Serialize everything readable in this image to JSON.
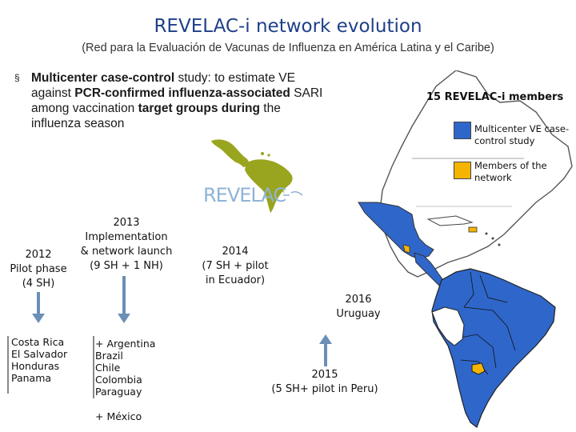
{
  "title": "REVELAC-i network evolution",
  "subtitle": "(Red para la Evaluación de Vacunas de Influenza en América Latina y el Caribe)",
  "bullet": {
    "marker": "§",
    "p1_bold": "Multicenter case-control",
    "p2": " study: to estimate VE against ",
    "p3_bold": "PCR-confirmed influenza-associated",
    "p4": " SARI among vaccination ",
    "p5_bold": "target groups during",
    "p6": " the influenza season"
  },
  "logo": {
    "text": "REVELAC",
    "colors": {
      "green": "#9aa51f",
      "blue": "#8fb4d6"
    }
  },
  "legend": {
    "title": "15 REVELAC-i members",
    "items": [
      {
        "label_line1": "Multicenter VE case-",
        "label_line2": "control study",
        "color": "#2f66c9"
      },
      {
        "label_line1": "Members of the",
        "label_line2": "network",
        "color": "#f4b400"
      }
    ]
  },
  "timeline": [
    {
      "line1": "2012",
      "line2": "Pilot phase",
      "line3": "(4 SH)"
    },
    {
      "line1": "2013",
      "line2": "Implementation",
      "line3": "& network launch",
      "line4": "(9 SH + 1 NH)"
    },
    {
      "line1": "2014",
      "line2": "(7 SH + pilot",
      "line3": "in Ecuador)"
    },
    {
      "line1": "2015",
      "line2": "(5 SH+ pilot in Peru)"
    },
    {
      "line1": "2016",
      "line2": "Uruguay"
    }
  ],
  "countries_2012": [
    "Costa Rica",
    "El Salvador",
    "Honduras",
    "Panama"
  ],
  "countries_2013": [
    "+ Argentina",
    "Brazil",
    "Chile",
    "Colombia",
    "Paraguay"
  ],
  "countries_2013_extra": "+ México",
  "colors": {
    "arrow": "#6b8fb7",
    "arrow_dark": "#41658f",
    "title": "#1f3f8a",
    "map_blue": "#2f66c9",
    "map_yellow": "#f4b400"
  }
}
